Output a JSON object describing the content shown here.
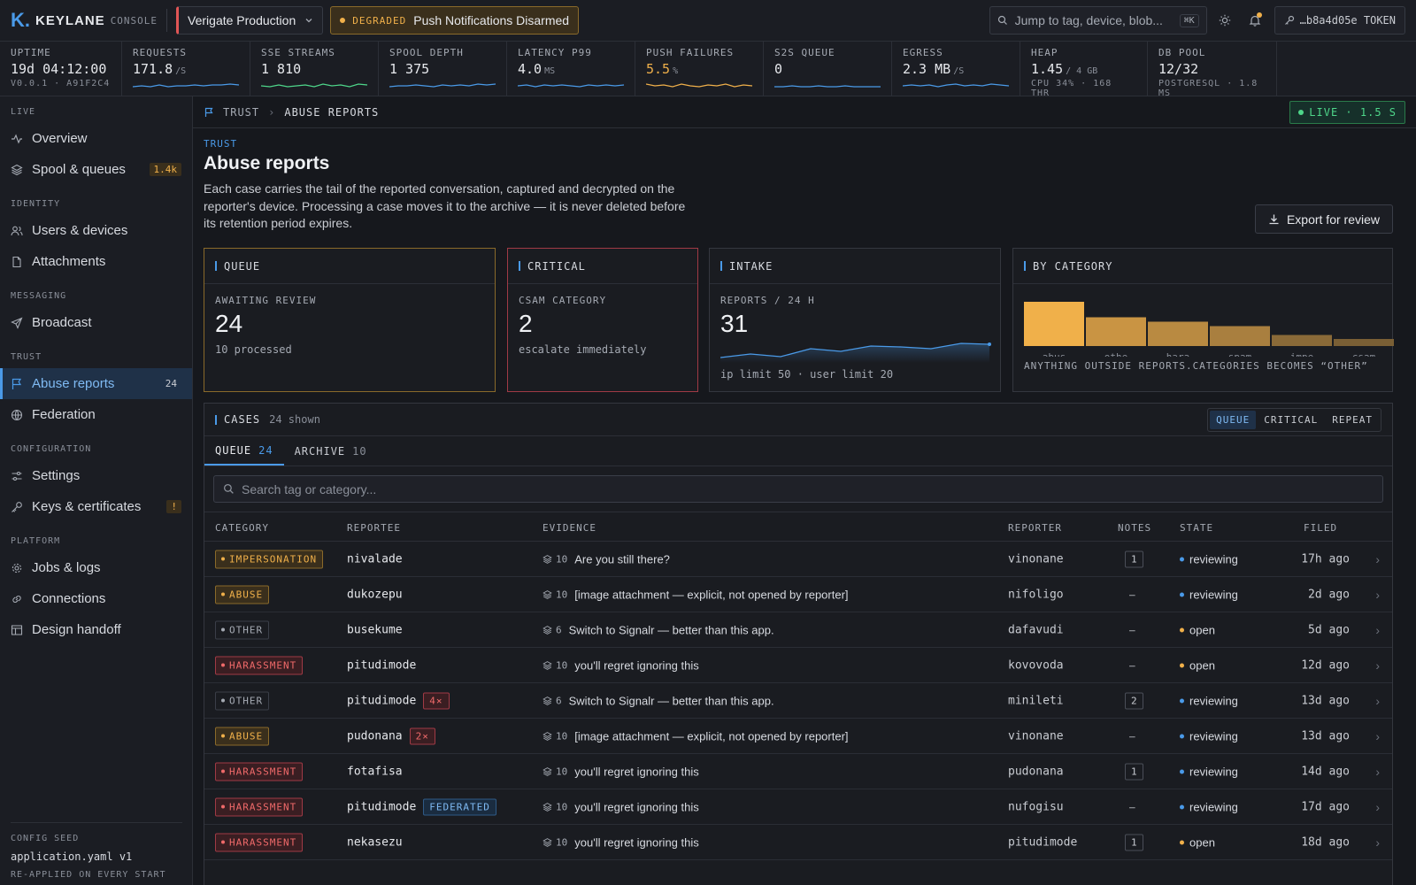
{
  "brand": {
    "mark": "K.",
    "name": "KEYLANE",
    "sub": "CONSOLE"
  },
  "env": {
    "name": "Verigate Production"
  },
  "status": {
    "tag": "DEGRADED",
    "text": "Push Notifications Disarmed"
  },
  "search": {
    "placeholder": "Jump to tag, device, blob...",
    "shortcut": "⌘K"
  },
  "token": {
    "text": "…b8a4d05e TOKEN"
  },
  "colors": {
    "accent": "#4a9ae8",
    "warn": "#f0b04a",
    "danger": "#e05555",
    "ok": "#4ed68a"
  },
  "stats": [
    {
      "label": "UPTIME",
      "value": "19d 04:12:00",
      "unit": "",
      "sub": "V0.0.1 · A91F2C4",
      "spark": null
    },
    {
      "label": "REQUESTS",
      "value": "171.8",
      "unit": "/S",
      "sub": "",
      "spark": "#4a9ae8"
    },
    {
      "label": "SSE STREAMS",
      "value": "1 810",
      "unit": "",
      "sub": "",
      "spark": "#4ed68a"
    },
    {
      "label": "SPOOL DEPTH",
      "value": "1 375",
      "unit": "",
      "sub": "",
      "spark": "#4a9ae8"
    },
    {
      "label": "LATENCY P99",
      "value": "4.0",
      "unit": "MS",
      "sub": "",
      "spark": "#4a9ae8"
    },
    {
      "label": "PUSH FAILURES",
      "value": "5.5",
      "unit": "%",
      "sub": "",
      "spark": "#f0b04a"
    },
    {
      "label": "S2S QUEUE",
      "value": "0",
      "unit": "",
      "sub": "",
      "spark": "#4a9ae8"
    },
    {
      "label": "EGRESS",
      "value": "2.3 MB",
      "unit": "/S",
      "sub": "",
      "spark": "#4a9ae8"
    },
    {
      "label": "HEAP",
      "value": "1.45",
      "unit": "/ 4 GB",
      "sub": "CPU 34% · 168 THR",
      "spark": null
    },
    {
      "label": "DB POOL",
      "value": "12/32",
      "unit": "",
      "sub": "POSTGRESQL · 1.8 MS",
      "spark": null
    }
  ],
  "sidebar": {
    "sections": [
      {
        "title": "LIVE",
        "items": [
          {
            "label": "Overview",
            "icon": "activity-icon",
            "badge": ""
          },
          {
            "label": "Spool & queues",
            "icon": "layers-icon",
            "badge": "1.4k"
          }
        ]
      },
      {
        "title": "IDENTITY",
        "items": [
          {
            "label": "Users & devices",
            "icon": "users-icon",
            "badge": ""
          },
          {
            "label": "Attachments",
            "icon": "file-icon",
            "badge": ""
          }
        ]
      },
      {
        "title": "MESSAGING",
        "items": [
          {
            "label": "Broadcast",
            "icon": "send-icon",
            "badge": ""
          }
        ]
      },
      {
        "title": "TRUST",
        "items": [
          {
            "label": "Abuse reports",
            "icon": "flag-icon",
            "badge": "24",
            "active": true
          },
          {
            "label": "Federation",
            "icon": "globe-icon",
            "badge": ""
          }
        ]
      },
      {
        "title": "CONFIGURATION",
        "items": [
          {
            "label": "Settings",
            "icon": "sliders-icon",
            "badge": ""
          },
          {
            "label": "Keys & certificates",
            "icon": "key-icon",
            "badge": "!"
          }
        ]
      },
      {
        "title": "PLATFORM",
        "items": [
          {
            "label": "Jobs & logs",
            "icon": "cog-icon",
            "badge": ""
          },
          {
            "label": "Connections",
            "icon": "link-icon",
            "badge": ""
          },
          {
            "label": "Design handoff",
            "icon": "layout-icon",
            "badge": ""
          }
        ]
      }
    ],
    "seed": {
      "title": "CONFIG SEED",
      "file": "application.yaml v1",
      "note": "RE-APPLIED ON EVERY START"
    }
  },
  "breadcrumb": {
    "section": "TRUST",
    "page": "ABUSE REPORTS"
  },
  "live": {
    "text": "LIVE · 1.5 S"
  },
  "page": {
    "eyebrow": "TRUST",
    "title": "Abuse reports",
    "description": "Each case carries the tail of the reported conversation, captured and decrypted on the reporter's device. Processing a case moves it to the archive — it is never deleted before its retention period expires.",
    "export_label": "Export for review"
  },
  "cards": {
    "queue": {
      "title": "QUEUE",
      "key": "AWAITING REVIEW",
      "value": "24",
      "note": "10 processed"
    },
    "critical": {
      "title": "CRITICAL",
      "key": "CSAM CATEGORY",
      "value": "2",
      "note": "escalate immediately"
    },
    "intake": {
      "title": "INTAKE",
      "key": "REPORTS / 24 H",
      "value": "31",
      "note": "ip limit 50 · user limit 20"
    },
    "category": {
      "title": "BY CATEGORY",
      "note": "ANYTHING OUTSIDE REPORTS.CATEGORIES BECOMES “OTHER”"
    }
  },
  "chart_data": {
    "type": "bar",
    "categories": [
      "abus",
      "othe",
      "hara",
      "spam",
      "impe",
      "csam"
    ],
    "values": [
      10,
      6.5,
      5.5,
      4.5,
      2.5,
      1.6
    ],
    "xlabel": "",
    "ylabel": ""
  },
  "cases": {
    "title": "CASES",
    "shown": "24 shown",
    "filters": [
      "QUEUE",
      "CRITICAL",
      "REPEAT"
    ],
    "tabs": [
      {
        "label": "QUEUE",
        "count": "24"
      },
      {
        "label": "ARCHIVE",
        "count": "10"
      }
    ],
    "search_placeholder": "Search tag or category...",
    "columns": [
      "CATEGORY",
      "REPORTEE",
      "EVIDENCE",
      "REPORTER",
      "NOTES",
      "STATE",
      "FILED"
    ],
    "rows": [
      {
        "category": "IMPERSONATION",
        "kind": "warn",
        "reportee": "nivalade",
        "flag": "",
        "count": "10",
        "evidence": "Are you still there?",
        "reporter": "vinonane",
        "notes": "1",
        "state": "reviewing",
        "filed": "17h ago"
      },
      {
        "category": "ABUSE",
        "kind": "warn",
        "reportee": "dukozepu",
        "flag": "",
        "count": "10",
        "evidence": "[image attachment — explicit, not opened by reporter]",
        "reporter": "nifoligo",
        "notes": "—",
        "state": "reviewing",
        "filed": "2d ago"
      },
      {
        "category": "OTHER",
        "kind": "muted",
        "reportee": "busekume",
        "flag": "",
        "count": "6",
        "evidence": "Switch to Signalr — better than this app.",
        "reporter": "dafavudi",
        "notes": "—",
        "state": "open",
        "filed": "5d ago"
      },
      {
        "category": "HARASSMENT",
        "kind": "danger",
        "reportee": "pitudimode",
        "flag": "",
        "count": "10",
        "evidence": "you'll regret ignoring this",
        "reporter": "kovovoda",
        "notes": "—",
        "state": "open",
        "filed": "12d ago"
      },
      {
        "category": "OTHER",
        "kind": "muted",
        "reportee": "pitudimode",
        "flag": "4×",
        "count": "6",
        "evidence": "Switch to Signalr — better than this app.",
        "reporter": "minileti",
        "notes": "2",
        "state": "reviewing",
        "filed": "13d ago"
      },
      {
        "category": "ABUSE",
        "kind": "warn",
        "reportee": "pudonana",
        "flag": "2×",
        "count": "10",
        "evidence": "[image attachment — explicit, not opened by reporter]",
        "reporter": "vinonane",
        "notes": "—",
        "state": "reviewing",
        "filed": "13d ago"
      },
      {
        "category": "HARASSMENT",
        "kind": "danger",
        "reportee": "fotafisa",
        "flag": "",
        "count": "10",
        "evidence": "you'll regret ignoring this",
        "reporter": "pudonana",
        "notes": "1",
        "state": "reviewing",
        "filed": "14d ago"
      },
      {
        "category": "HARASSMENT",
        "kind": "danger",
        "reportee": "pitudimode",
        "flag": "FEDERATED",
        "count": "10",
        "evidence": "you'll regret ignoring this",
        "reporter": "nufogisu",
        "notes": "—",
        "state": "reviewing",
        "filed": "17d ago"
      },
      {
        "category": "HARASSMENT",
        "kind": "danger",
        "reportee": "nekasezu",
        "flag": "",
        "count": "10",
        "evidence": "you'll regret ignoring this",
        "reporter": "pitudimode",
        "notes": "1",
        "state": "open",
        "filed": "18d ago"
      }
    ]
  }
}
